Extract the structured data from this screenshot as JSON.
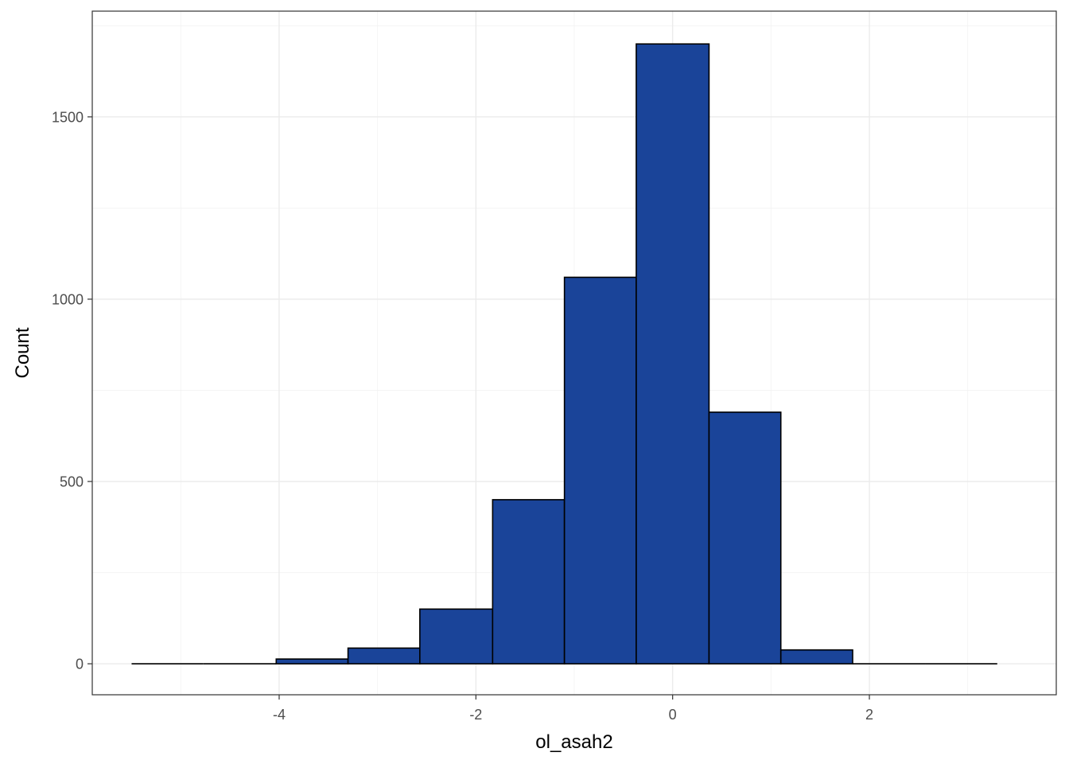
{
  "chart_data": {
    "type": "bar",
    "subtype": "histogram",
    "title": "",
    "xlabel": "ol_asah2",
    "ylabel": "Count",
    "xlim": [
      -5.9,
      3.9
    ],
    "ylim": [
      -85,
      1790
    ],
    "x_ticks": [
      -4,
      -2,
      0,
      2
    ],
    "x_tick_labels": [
      "-4",
      "-2",
      "0",
      "2"
    ],
    "x_minor_ticks": [
      -5,
      -3,
      -1,
      1,
      3
    ],
    "y_ticks": [
      0,
      500,
      1000,
      1500
    ],
    "y_tick_labels": [
      "0",
      "500",
      "1000",
      "1500"
    ],
    "y_minor_ticks": [
      250,
      750,
      1250,
      1750
    ],
    "grid": true,
    "legend": "none",
    "bar_fill": "#1a4499",
    "bar_outline": "#000000",
    "bins": [
      {
        "x0": -5.5,
        "x1": -4.77,
        "count": 0
      },
      {
        "x0": -4.77,
        "x1": -4.03,
        "count": 0
      },
      {
        "x0": -4.03,
        "x1": -3.3,
        "count": 13
      },
      {
        "x0": -3.3,
        "x1": -2.57,
        "count": 43
      },
      {
        "x0": -2.57,
        "x1": -1.83,
        "count": 150
      },
      {
        "x0": -1.83,
        "x1": -1.1,
        "count": 450
      },
      {
        "x0": -1.1,
        "x1": -0.37,
        "count": 1060
      },
      {
        "x0": -0.37,
        "x1": 0.37,
        "count": 1700
      },
      {
        "x0": 0.37,
        "x1": 1.1,
        "count": 690
      },
      {
        "x0": 1.1,
        "x1": 1.83,
        "count": 38
      },
      {
        "x0": 1.83,
        "x1": 2.57,
        "count": 0
      },
      {
        "x0": 2.57,
        "x1": 3.3,
        "count": 0
      }
    ]
  }
}
